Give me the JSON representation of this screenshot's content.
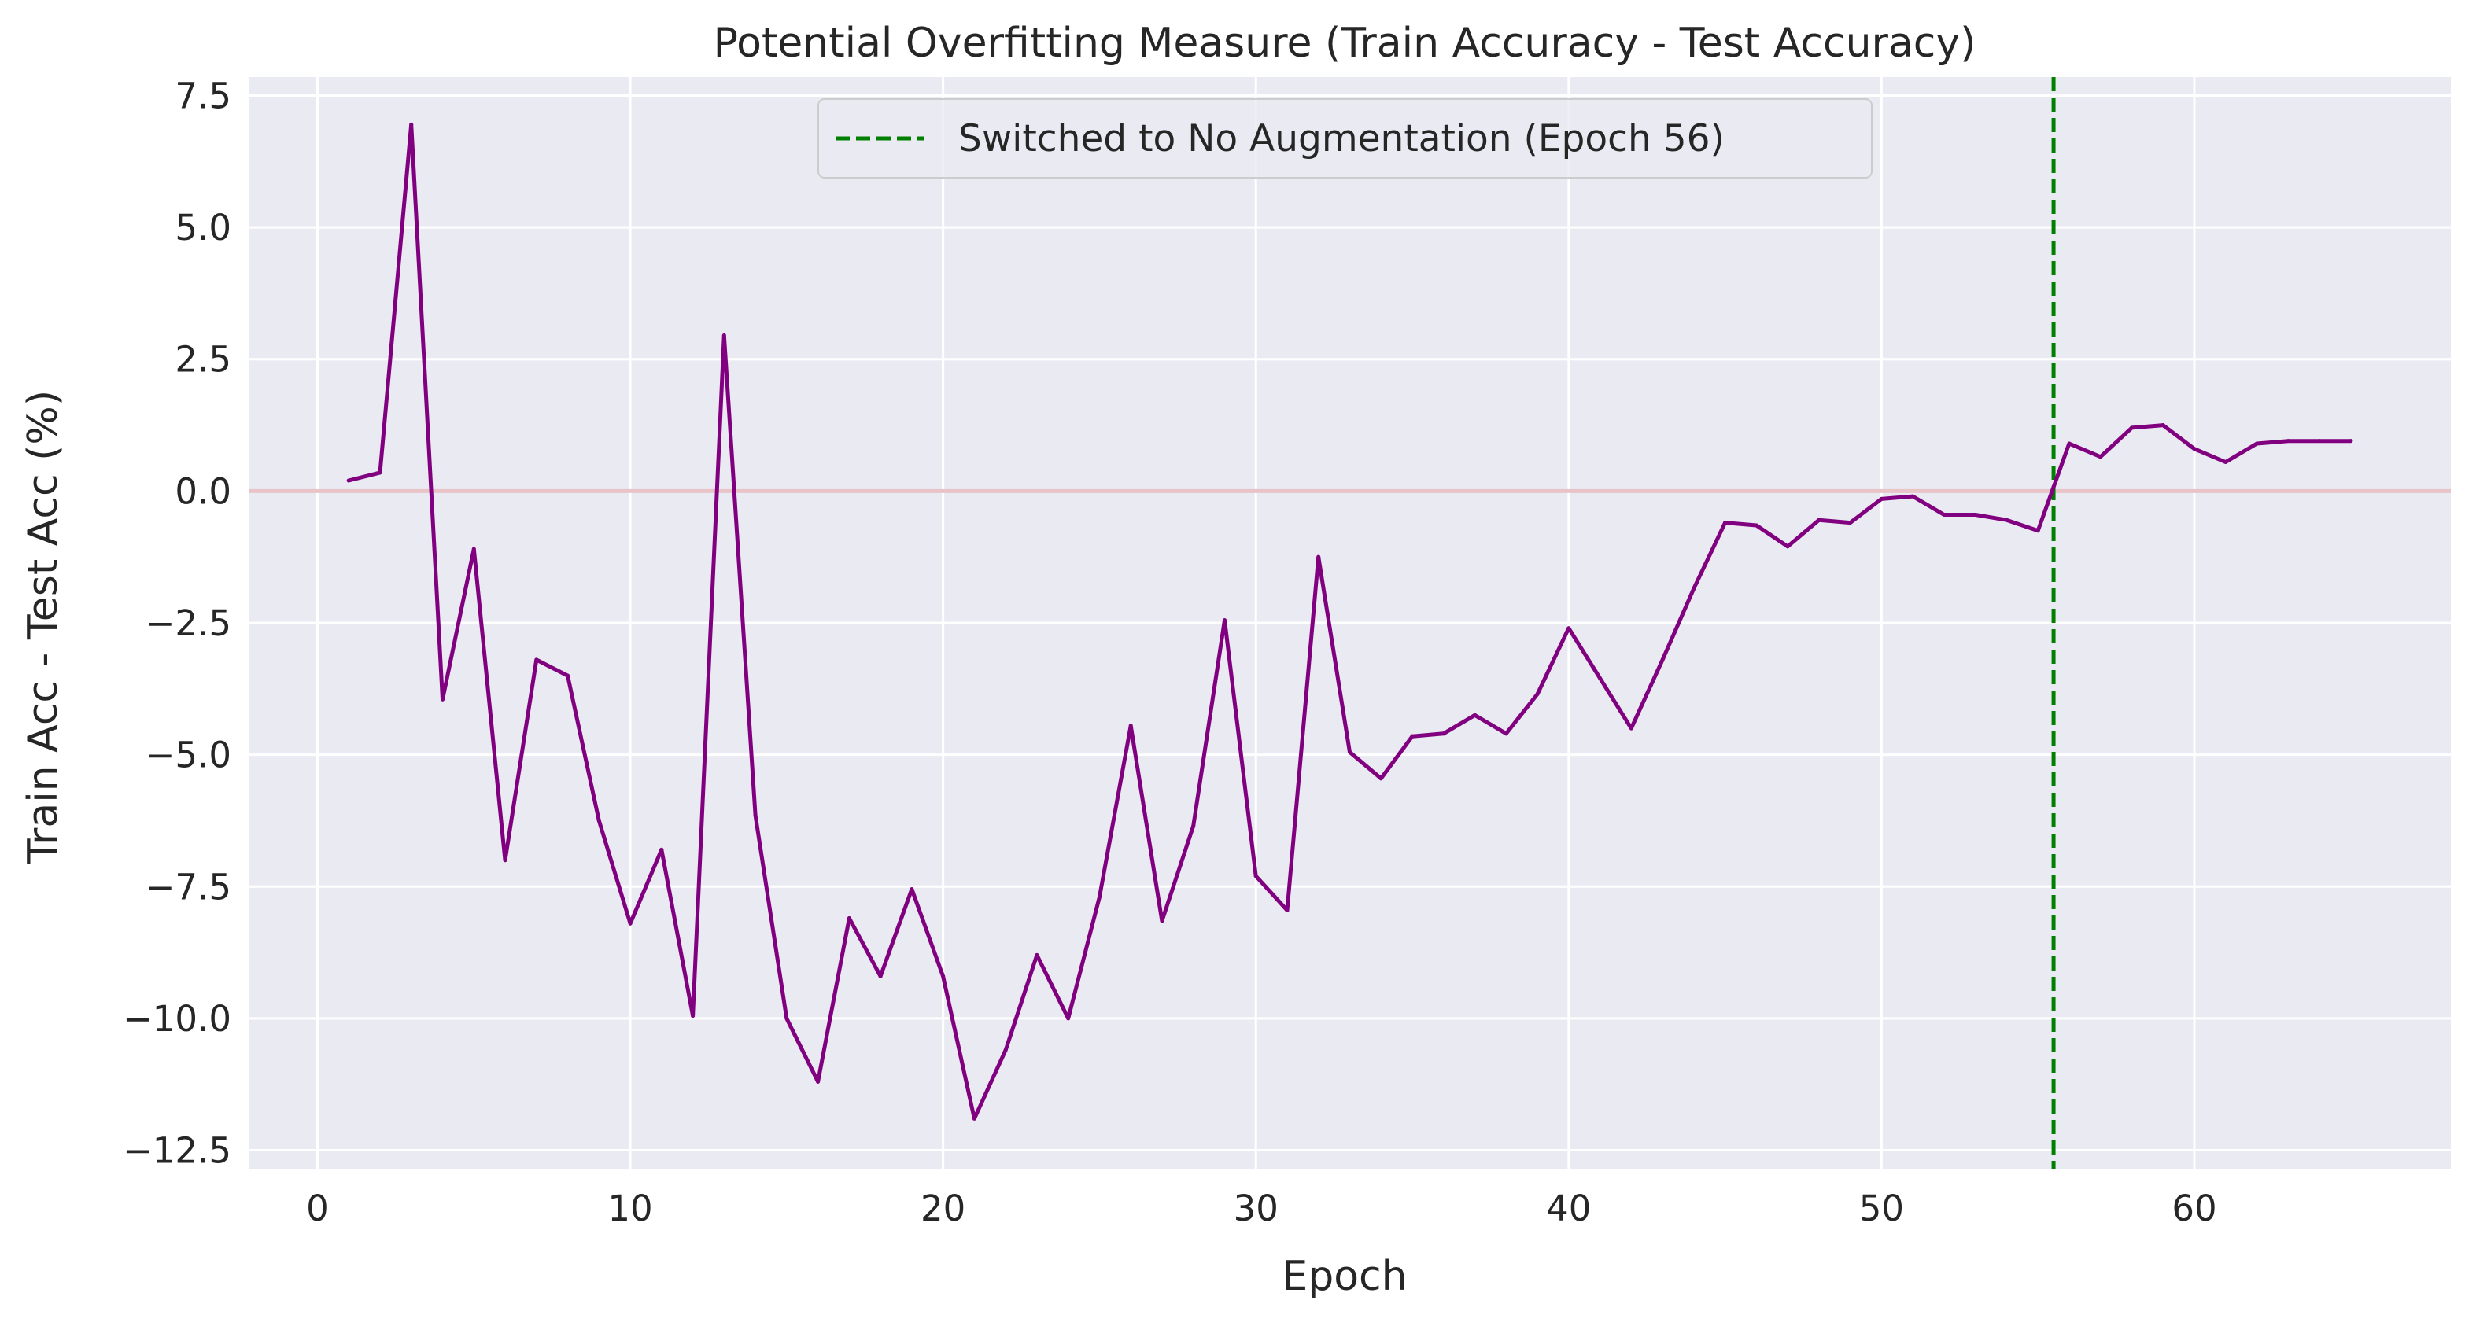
{
  "chart_data": {
    "type": "line",
    "title": "Potential Overfitting Measure (Train Accuracy - Test Accuracy)",
    "xlabel": "Epoch",
    "ylabel": "Train Acc - Test Acc (%)",
    "xlim": [
      -2.2,
      68.2
    ],
    "ylim": [
      -12.85,
      7.85
    ],
    "xticks": [
      0,
      10,
      20,
      30,
      40,
      50,
      60
    ],
    "xtick_labels": [
      "0",
      "10",
      "20",
      "30",
      "40",
      "50",
      "60"
    ],
    "yticks": [
      7.5,
      5.0,
      2.5,
      0.0,
      -2.5,
      -5.0,
      -7.5,
      -10.0,
      -12.5
    ],
    "ytick_labels": [
      "7.5",
      "5.0",
      "2.5",
      "0.0",
      "−2.5",
      "−5.0",
      "−7.5",
      "−10.0",
      "−12.5"
    ],
    "grid": true,
    "background": "#eaeaf2",
    "series": [
      {
        "color": "#800080",
        "x": [
          1,
          2,
          3,
          4,
          5,
          6,
          7,
          8,
          9,
          10,
          11,
          12,
          13,
          14,
          15,
          16,
          17,
          18,
          19,
          20,
          21,
          22,
          23,
          24,
          25,
          26,
          27,
          28,
          29,
          30,
          31,
          32,
          33,
          34,
          35,
          36,
          37,
          38,
          39,
          40,
          41,
          42,
          43,
          44,
          45,
          46,
          47,
          48,
          49,
          50,
          51,
          52,
          53,
          54,
          55,
          56,
          57,
          58,
          59,
          60,
          61,
          62,
          63,
          64,
          65
        ],
        "y": [
          0.2,
          0.35,
          6.95,
          -3.95,
          -1.1,
          -7.0,
          -3.2,
          -3.5,
          -6.25,
          -8.2,
          -6.8,
          -9.95,
          2.95,
          -6.15,
          -10.0,
          -11.2,
          -8.1,
          -9.2,
          -7.55,
          -9.2,
          -11.9,
          -10.6,
          -8.8,
          -10.0,
          -7.7,
          -4.45,
          -8.15,
          -6.35,
          -2.45,
          -7.3,
          -7.95,
          -1.25,
          -4.95,
          -5.45,
          -4.65,
          -4.6,
          -4.25,
          -4.6,
          -3.85,
          -2.6,
          -3.55,
          -4.5,
          -3.2,
          -1.85,
          -0.6,
          -0.65,
          -1.05,
          -0.55,
          -0.6,
          -0.15,
          -0.1,
          -0.45,
          -0.45,
          -0.55,
          -0.75,
          0.9,
          0.65,
          1.2,
          1.25,
          0.8,
          0.55,
          0.9,
          0.95,
          0.95,
          0.95
        ]
      }
    ],
    "reference_lines": [
      {
        "orientation": "horizontal",
        "y": 0,
        "color": "#e8c4c8",
        "style": "solid"
      },
      {
        "orientation": "vertical",
        "x": 55.5,
        "color": "#008000",
        "style": "dashed",
        "label": "Switched to No Augmentation (Epoch 56)"
      }
    ],
    "legend": {
      "placement": "top-center",
      "entries": [
        {
          "label": "Switched to No Augmentation (Epoch 56)",
          "color": "#008000",
          "style": "dashed"
        }
      ]
    }
  }
}
